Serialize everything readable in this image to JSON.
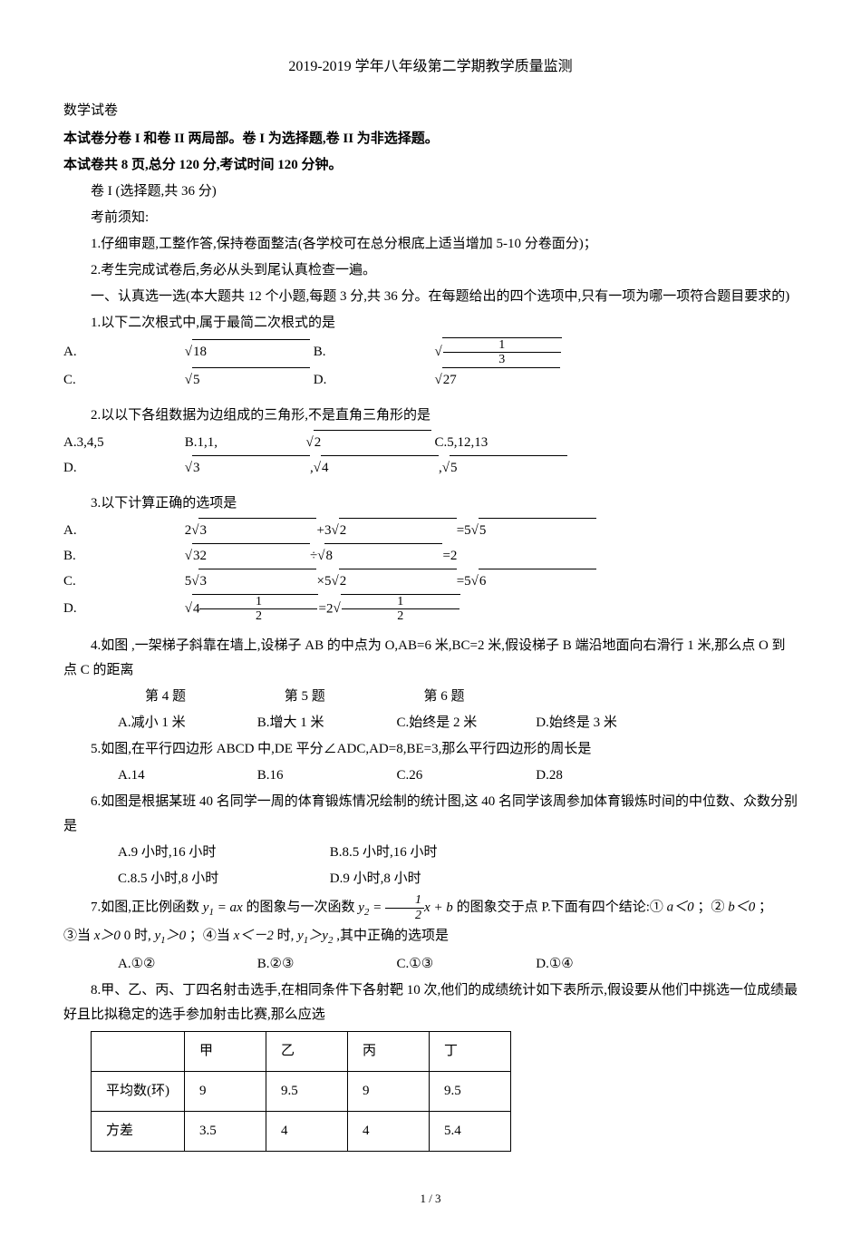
{
  "title": "2019-2019 学年八年级第二学期教学质量监测",
  "subtitle": "数学试卷",
  "intro1": "本试卷分卷 I 和卷 II 两局部。卷 I 为选择题,卷 II 为非选择题。",
  "intro2": "本试卷共 8 页,总分 120 分,考试时间 120 分钟。",
  "section1": "卷 I (选择题,共 36 分)",
  "notice_title": "考前须知:",
  "notice1": "1.仔细审题,工整作答,保持卷面整洁(各学校可在总分根底上适当增加 5-10 分卷面分)；",
  "notice2": "2.考生完成试卷后,务必从头到尾认真检查一遍。",
  "part1": "一、认真选一选(本大题共 12 个小题,每题 3 分,共 36 分。在每题给出的四个选项中,只有一项为哪一项符合题目要求的)",
  "q1": "1.以下二次根式中,属于最简二次根式的是",
  "q1a": "A.",
  "q1a_val": "18",
  "q1b": "B.",
  "q1b_num": "1",
  "q1b_den": "3",
  "q1c": "C.",
  "q1c_val": "5",
  "q1d": "D.",
  "q1d_val": "27",
  "q2": "2.以以下各组数据为边组成的三角形,不是直角三角形的是",
  "q2a": "A.3,4,5",
  "q2b": "B.1,1,",
  "q2b_val": "2",
  "q2c": "C.5,12,13",
  "q2d": "D.",
  "q2d_a": "3",
  "q2d_b": "4",
  "q2d_c": "5",
  "q3": "3.以下计算正确的选项是",
  "q3a": "A.",
  "q3b": "B.",
  "q3c": "C.",
  "q3d": "D.",
  "q4": "4.如图 ,一架梯子斜靠在墙上,设梯子 AB 的中点为 O,AB=6 米,BC=2 米,假设梯子 B 端沿地面向右滑行 1 米,那么点 O 到点 C 的距离",
  "q4_figs": "第 4 题",
  "q5_fig": "第 5 题",
  "q6_fig": "第 6 题",
  "q4a": "A.减小 1 米",
  "q4b": "B.增大 1 米",
  "q4c": "C.始终是 2 米",
  "q4d": "D.始终是 3 米",
  "q5": "5.如图,在平行四边形 ABCD 中,DE 平分∠ADC,AD=8,BE=3,那么平行四边形的周长是",
  "q5a": "A.14",
  "q5b": "B.16",
  "q5c": "C.26",
  "q5d": "D.28",
  "q6": "6.如图是根据某班 40 名同学一周的体育锻炼情况绘制的统计图,这 40 名同学该周参加体育锻炼时间的中位数、众数分别是",
  "q6a": "A.9 小时,16 小时",
  "q6b": "B.8.5 小时,16 小时",
  "q6c": "C.8.5 小时,8 小时",
  "q6d": "D.9 小时,8 小时",
  "q7_a": "7.如图,正比例函数",
  "q7_b": "的图象与一次函数",
  "q7_c": "的图象交于点 P.下面有四个结论:①",
  "q7_d": "；②",
  "q7_e": "；",
  "q7_f": "③当",
  "q7_g": "0 时,",
  "q7_h": "；④当",
  "q7_i": "时,",
  "q7_j": ",其中正确的选项是",
  "q7a": "A.①②",
  "q7b": "B.②③",
  "q7c": "C.①③",
  "q7d": "D.①④",
  "q8": "8.甲、乙、丙、丁四名射击选手,在相同条件下各射靶 10 次,他们的成绩统计如下表所示,假设要从他们中挑选一位成绩最好且比拟稳定的选手参加射击比赛,那么应选",
  "table": {
    "headers": [
      "",
      "甲",
      "乙",
      "丙",
      "丁"
    ],
    "rows": [
      [
        "平均数(环)",
        "9",
        "9.5",
        "9",
        "9.5"
      ],
      [
        "方差",
        "3.5",
        "4",
        "4",
        "5.4"
      ]
    ]
  },
  "footer": "1 / 3"
}
